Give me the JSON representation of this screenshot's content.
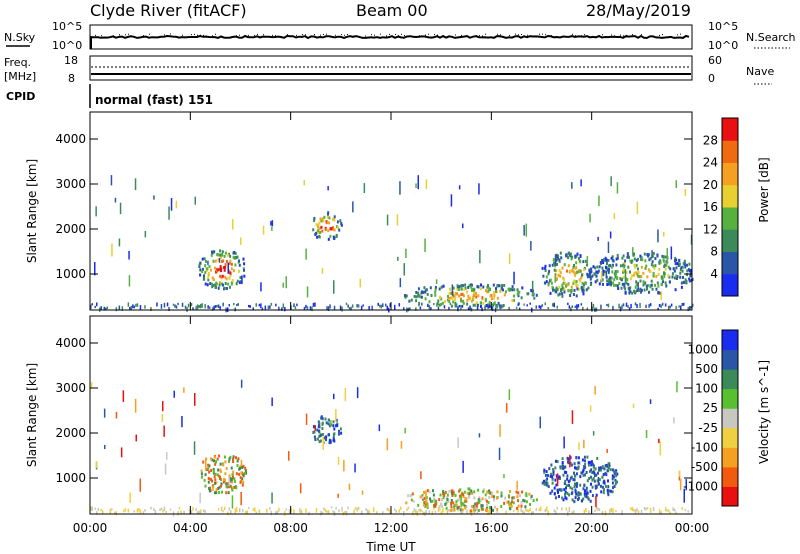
{
  "header": {
    "station": "Clyde River (fitACF)",
    "beam": "Beam 00",
    "date": "28/May/2019"
  },
  "nsky_panel": {
    "left_label": "N.Sky",
    "right_label": "N.Search",
    "left_ticks": [
      "10^5",
      "10^0"
    ],
    "right_ticks": [
      "10^5",
      "10^0"
    ]
  },
  "freq_panel": {
    "left_label_line1": "Freq.",
    "left_label_line2": "[MHz]",
    "right_label": "Nave",
    "left_ticks": [
      "18",
      "8"
    ],
    "right_ticks": [
      "60",
      "0"
    ],
    "cpid_label": "CPID",
    "cpid_text": "normal (fast) 151"
  },
  "colors": {
    "power_scale": [
      "#1a2cf0",
      "#2a56a8",
      "#3c8a5a",
      "#57b040",
      "#e8d030",
      "#f5a020",
      "#f06a10",
      "#e81010"
    ],
    "velocity_scale": [
      "#e81010",
      "#f25a10",
      "#f5a020",
      "#f0d040",
      "#c8c8c0",
      "#58c030",
      "#3c8a5a",
      "#2a56a8",
      "#1a2cf0"
    ]
  },
  "chart_data": [
    {
      "type": "heatmap",
      "ylabel": "Slant Range [km]",
      "yticks": [
        "1000",
        "2000",
        "3000",
        "4000"
      ],
      "ylim": [
        200,
        4600
      ],
      "xlim": [
        "00:00",
        "24:00"
      ],
      "colorbar": {
        "label": "Power [dB]",
        "ticks": [
          "4",
          "8",
          "12",
          "16",
          "20",
          "24",
          "28"
        ],
        "range": [
          0,
          32
        ]
      },
      "patches": [
        {
          "t0": 4.3,
          "t1": 6.2,
          "r0": 700,
          "r1": 1550,
          "level": "high"
        },
        {
          "t0": 8.8,
          "t1": 10.0,
          "r0": 1800,
          "r1": 2400,
          "level": "high"
        },
        {
          "t0": 12.5,
          "t1": 17.8,
          "r0": 300,
          "r1": 800,
          "level": "mid"
        },
        {
          "t0": 18.0,
          "t1": 20.0,
          "r0": 500,
          "r1": 1500,
          "level": "mid"
        },
        {
          "t0": 20.0,
          "t1": 24.0,
          "r0": 600,
          "r1": 1500,
          "level": "low"
        }
      ]
    },
    {
      "type": "heatmap",
      "ylabel": "Slant Range [km]",
      "yticks": [
        "1000",
        "2000",
        "3000",
        "4000"
      ],
      "ylim": [
        200,
        4600
      ],
      "xlabel": "Time UT",
      "xticks": [
        "00:00",
        "04:00",
        "08:00",
        "12:00",
        "16:00",
        "20:00",
        "00:00"
      ],
      "xlim": [
        "00:00",
        "24:00"
      ],
      "colorbar": {
        "label": "Velocity [m s^-1]",
        "ticks": [
          "1000",
          "500",
          "100",
          "25",
          "-25",
          "-100",
          "-500",
          "-1000"
        ]
      },
      "patches": [
        {
          "t0": 4.3,
          "t1": 6.2,
          "r0": 700,
          "r1": 1550,
          "level": "toward"
        },
        {
          "t0": 8.8,
          "t1": 10.0,
          "r0": 1800,
          "r1": 2400,
          "level": "away"
        },
        {
          "t0": 12.5,
          "t1": 17.8,
          "r0": 300,
          "r1": 800,
          "level": "slow"
        },
        {
          "t0": 18.0,
          "t1": 21.0,
          "r0": 500,
          "r1": 1500,
          "level": "away"
        }
      ]
    }
  ]
}
